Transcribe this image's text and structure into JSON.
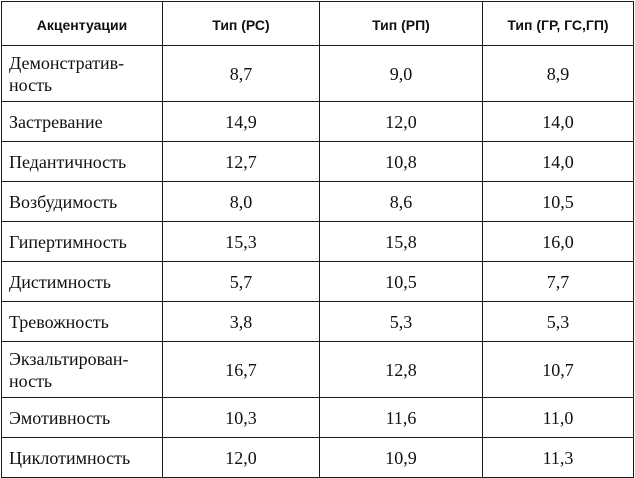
{
  "table": {
    "headers": [
      "Акцентуации",
      "Тип (РС)",
      "Тип (РП)",
      "Тип (ГР, ГС,ГП)"
    ],
    "rows": [
      {
        "lines": [
          "Демонстратив-",
          "ность"
        ],
        "values": [
          "8,7",
          "9,0",
          "8,9"
        ]
      },
      {
        "lines": [
          "Застревание"
        ],
        "values": [
          "14,9",
          "12,0",
          "14,0"
        ]
      },
      {
        "lines": [
          "Педантичность"
        ],
        "values": [
          "12,7",
          "10,8",
          "14,0"
        ]
      },
      {
        "lines": [
          "Возбудимость"
        ],
        "values": [
          "8,0",
          "8,6",
          "10,5"
        ]
      },
      {
        "lines": [
          "Гипертимность"
        ],
        "values": [
          "15,3",
          "15,8",
          "16,0"
        ]
      },
      {
        "lines": [
          "Дистимность"
        ],
        "values": [
          "5,7",
          "10,5",
          "7,7"
        ]
      },
      {
        "lines": [
          "Тревожность"
        ],
        "values": [
          "3,8",
          "5,3",
          "5,3"
        ]
      },
      {
        "lines": [
          "Экзальтирован-",
          "ность"
        ],
        "values": [
          "16,7",
          "12,8",
          "10,7"
        ]
      },
      {
        "lines": [
          "Эмотивность"
        ],
        "values": [
          "10,3",
          "11,6",
          "11,0"
        ]
      },
      {
        "lines": [
          "Циклотимность"
        ],
        "values": [
          "12,0",
          "10,9",
          "11,3"
        ]
      }
    ]
  }
}
